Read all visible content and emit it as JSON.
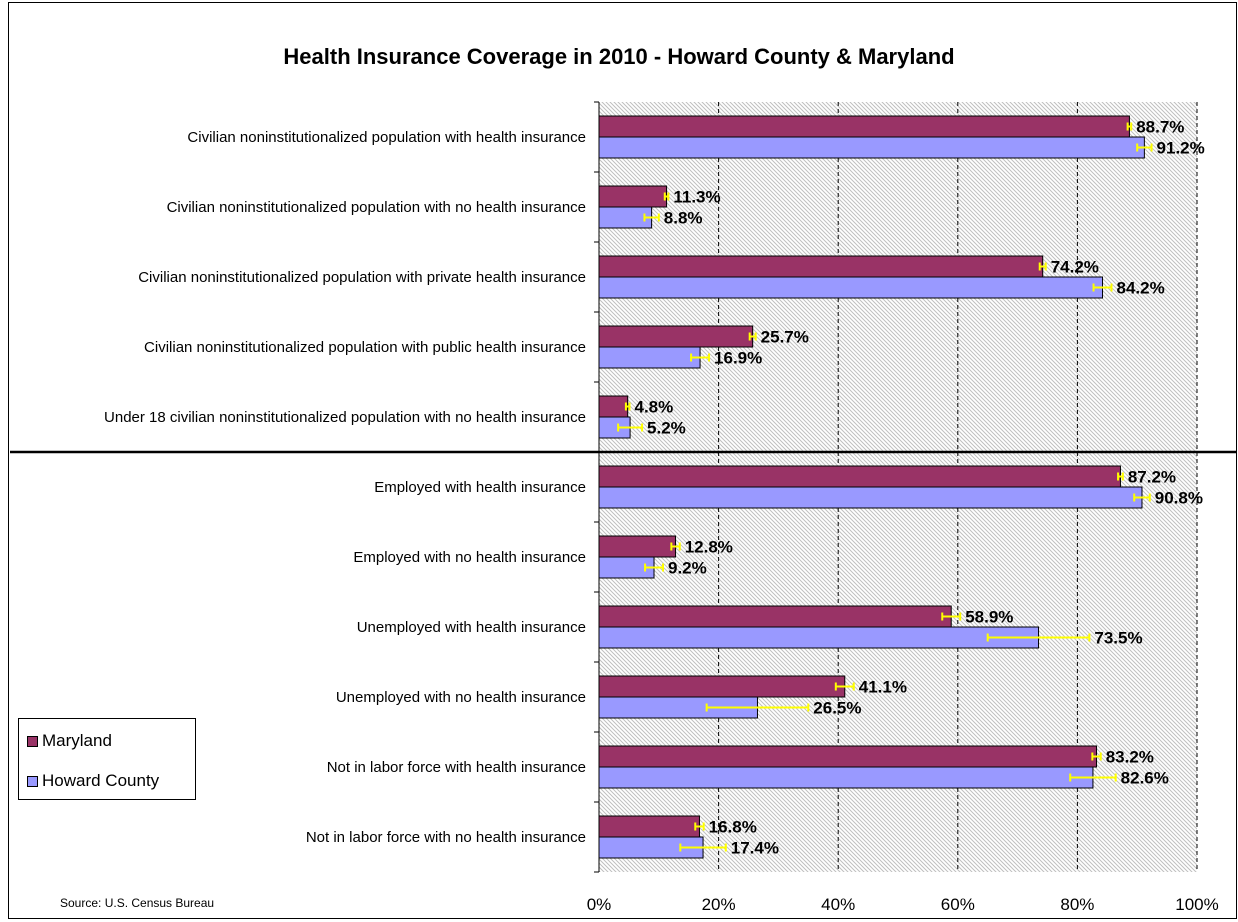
{
  "chart_data": {
    "type": "bar",
    "orientation": "horizontal",
    "title": "Health Insurance Coverage in 2010 - Howard County & Maryland",
    "source": "Source:  U.S. Census Bureau",
    "categories": [
      "Civilian noninstitutionalized population with health insurance",
      "Civilian noninstitutionalized population with no health insurance",
      "Civilian noninstitutionalized population with private health insurance",
      "Civilian noninstitutionalized population with public health insurance",
      "Under 18 civilian noninstitutionalized population with no health insurance",
      "Employed with health insurance",
      "Employed with no health insurance",
      "Unemployed with health insurance",
      "Unemployed with no health insurance",
      "Not in labor force with health insurance",
      "Not in labor force with no health insurance"
    ],
    "series": [
      {
        "name": "Maryland",
        "color": "#993366",
        "values": [
          88.7,
          11.3,
          74.2,
          25.7,
          4.8,
          87.2,
          12.8,
          58.9,
          41.1,
          83.2,
          16.8
        ],
        "labels": [
          "88.7%",
          "11.3%",
          "74.2%",
          "25.7%",
          "4.8%",
          "87.2%",
          "12.8%",
          "58.9%",
          "41.1%",
          "83.2%",
          "16.8%"
        ],
        "error_margin": [
          0.3,
          0.3,
          0.5,
          0.5,
          0.3,
          0.4,
          0.7,
          1.5,
          1.5,
          0.7,
          0.7
        ]
      },
      {
        "name": "Howard County",
        "color": "#9999ff",
        "values": [
          91.2,
          8.8,
          84.2,
          16.9,
          5.2,
          90.8,
          9.2,
          73.5,
          26.5,
          82.6,
          17.4
        ],
        "labels": [
          "91.2%",
          "8.8%",
          "84.2%",
          "16.9%",
          "5.2%",
          "90.8%",
          "9.2%",
          "73.5%",
          "26.5%",
          "82.6%",
          "17.4%"
        ],
        "error_margin": [
          1.2,
          1.2,
          1.5,
          1.5,
          2.0,
          1.3,
          1.5,
          8.5,
          8.5,
          3.8,
          3.8
        ]
      }
    ],
    "xlim": [
      0,
      100
    ],
    "xticks": [
      "0%",
      "20%",
      "40%",
      "60%",
      "80%",
      "100%"
    ],
    "xtick_values": [
      0,
      20,
      40,
      60,
      80,
      100
    ],
    "grid": true,
    "group_divider_after_category": 4,
    "legend_position": "bottom-left",
    "error_bar_color": "#ffff00",
    "plot_background": "#d9d9d9"
  }
}
